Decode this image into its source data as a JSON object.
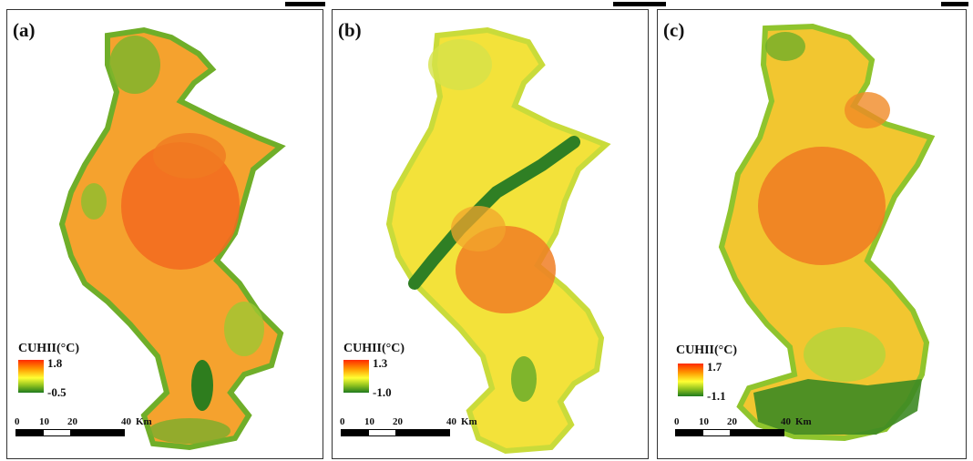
{
  "panels": [
    {
      "label": "(a)",
      "legend": {
        "title": "CUHII(°C)",
        "max": "1.8",
        "min": "-0.5"
      },
      "scale": {
        "ticks": [
          "0",
          "10",
          "20",
          "40"
        ],
        "unit": "Km"
      },
      "fill": {
        "base": "#f2a72a",
        "edge": "#7cb82a"
      }
    },
    {
      "label": "(b)",
      "legend": {
        "title": "CUHII(°C)",
        "max": "1.3",
        "min": "-1.0"
      },
      "scale": {
        "ticks": [
          "0",
          "10",
          "20",
          "40"
        ],
        "unit": "Km"
      },
      "fill": {
        "base": "#f2e13a",
        "edge": "#b9d63a"
      }
    },
    {
      "label": "(c)",
      "legend": {
        "title": "CUHII(°C)",
        "max": "1.7",
        "min": "-1.1"
      },
      "scale": {
        "ticks": [
          "0",
          "10",
          "20",
          "40"
        ],
        "unit": "Km"
      },
      "fill": {
        "base": "#f2c630",
        "edge": "#9acb30"
      }
    }
  ]
}
